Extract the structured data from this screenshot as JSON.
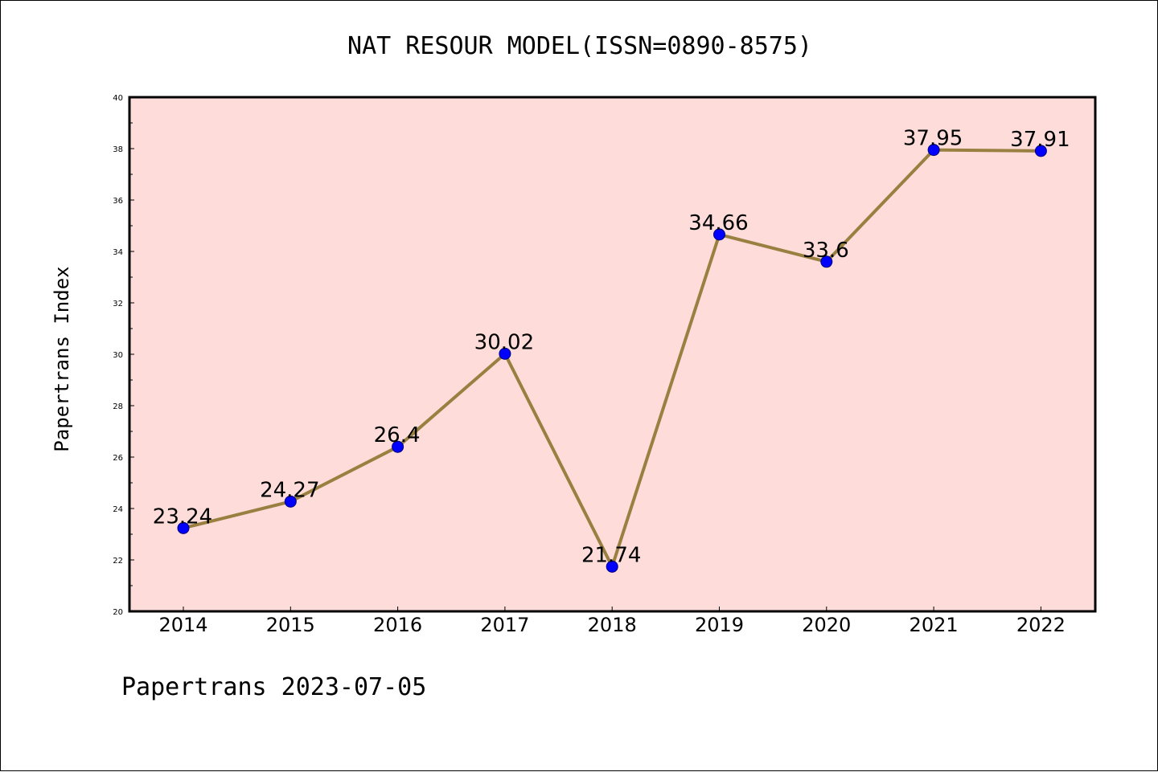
{
  "chart_data": {
    "type": "line",
    "title": "NAT RESOUR MODEL(ISSN=0890-8575)",
    "xlabel": "",
    "ylabel": "Papertrans Index",
    "footer": "Papertrans 2023-07-05",
    "categories": [
      "2014",
      "2015",
      "2016",
      "2017",
      "2018",
      "2019",
      "2020",
      "2021",
      "2022"
    ],
    "values": [
      23.24,
      24.27,
      26.4,
      30.02,
      21.74,
      34.66,
      33.6,
      37.95,
      37.91
    ],
    "data_labels": [
      "23.24",
      "24.27",
      "26.4",
      "30.02",
      "21.74",
      "34.66",
      "33.6",
      "37.95",
      "37.91"
    ],
    "ylim": [
      20,
      40
    ],
    "yticks": [
      "20",
      "22",
      "24",
      "26",
      "28",
      "30",
      "32",
      "34",
      "36",
      "38",
      "40"
    ],
    "grid": false,
    "colors": {
      "plot_background": "#fddcda",
      "line": "#9a8040",
      "marker": "#0000ff",
      "axis": "#000000"
    }
  }
}
